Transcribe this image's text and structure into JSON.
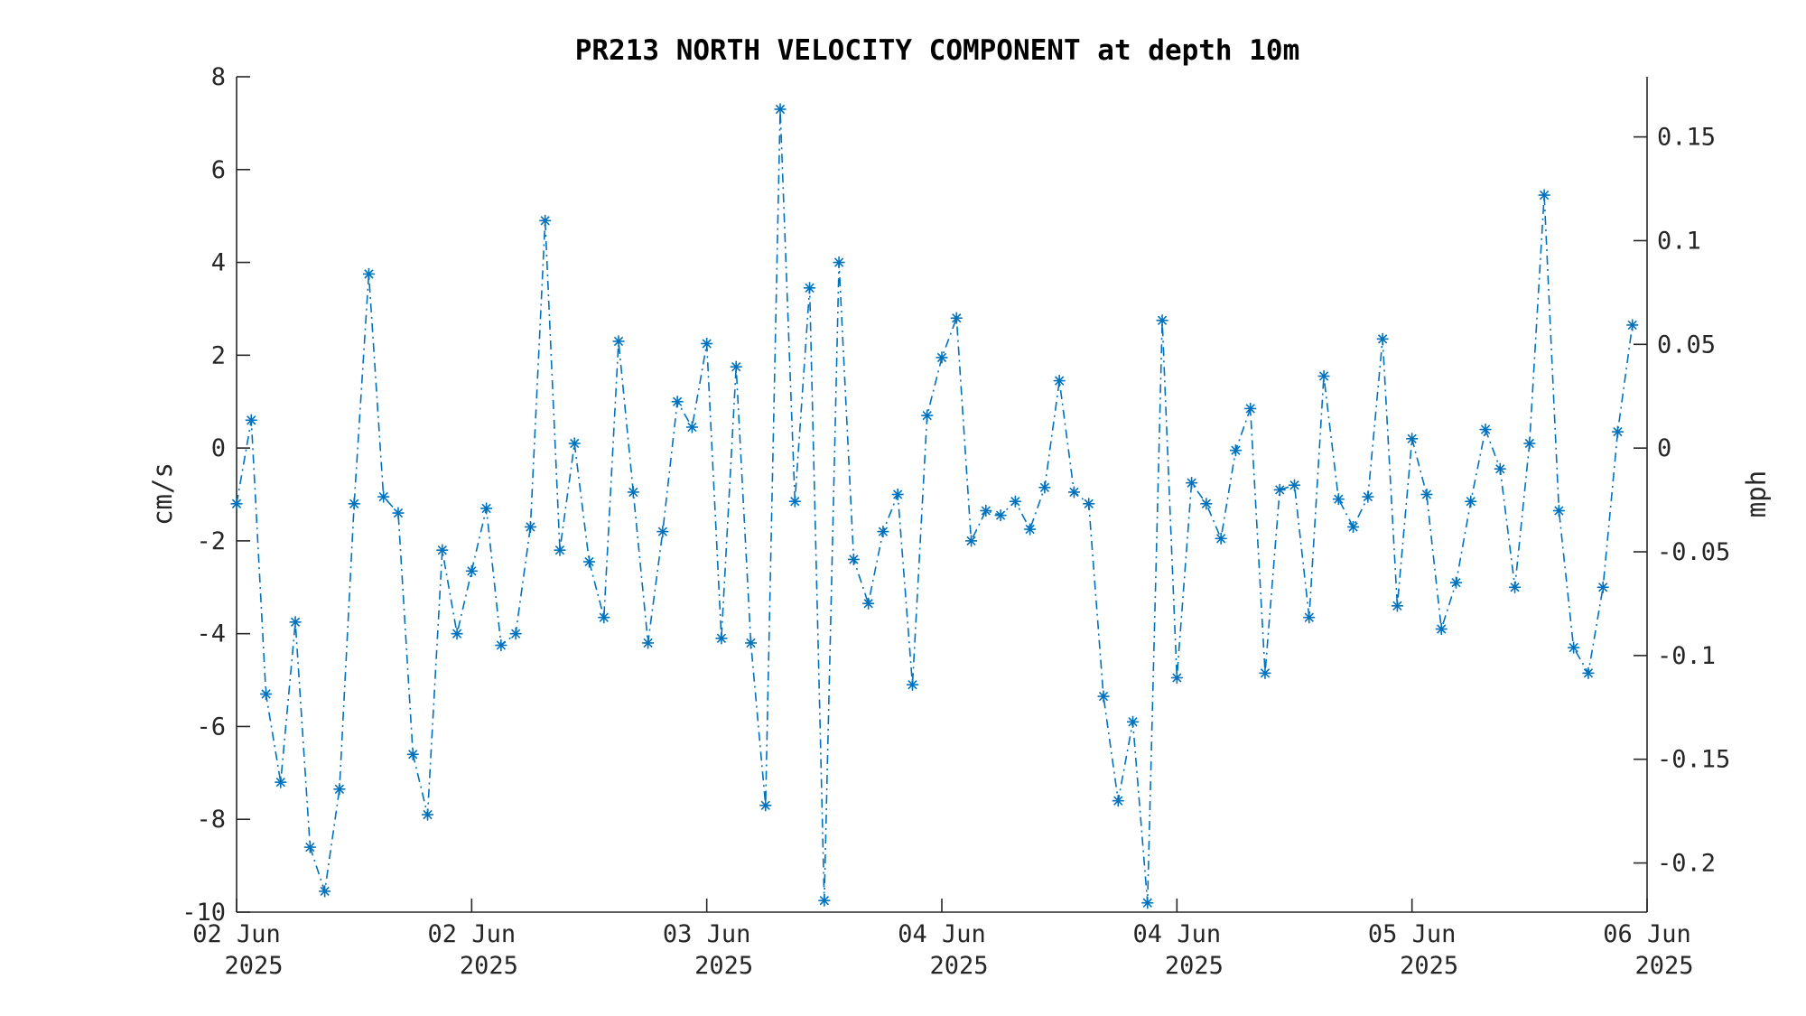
{
  "chart_data": {
    "type": "line",
    "title": "PR213 NORTH VELOCITY COMPONENT at depth 10m",
    "ylabel_left": "cm/s",
    "ylabel_right": "mph",
    "ylim_left": [
      -10,
      8
    ],
    "ylim_right": [
      -0.2237,
      0.179
    ],
    "yticks_left": [
      "8",
      "6",
      "4",
      "2",
      "0",
      "-2",
      "-4",
      "-6",
      "-8",
      "-10"
    ],
    "yticks_left_values": [
      8,
      6,
      4,
      2,
      0,
      -2,
      -4,
      -6,
      -8,
      -10
    ],
    "yticks_right": [
      "0.15",
      "0.1",
      "0.05",
      "0",
      "-0.05",
      "-0.1",
      "-0.15",
      "-0.2"
    ],
    "yticks_right_values": [
      0.15,
      0.1,
      0.05,
      0,
      -0.05,
      -0.1,
      -0.15,
      -0.2
    ],
    "xlim": [
      "2025-06-02 00:00",
      "2025-06-06 00:00"
    ],
    "xticks": [
      {
        "line1": "02 Jun",
        "line2": "2025",
        "value": "2025-06-02 00:00"
      },
      {
        "line1": "02 Jun",
        "line2": "2025",
        "value": "2025-06-02 16:00"
      },
      {
        "line1": "03 Jun",
        "line2": "2025",
        "value": "2025-06-03 08:00"
      },
      {
        "line1": "04 Jun",
        "line2": "2025",
        "value": "2025-06-04 00:00"
      },
      {
        "line1": "04 Jun",
        "line2": "2025",
        "value": "2025-06-04 16:00"
      },
      {
        "line1": "05 Jun",
        "line2": "2025",
        "value": "2025-06-05 08:00"
      },
      {
        "line1": "06 Jun",
        "line2": "2025",
        "value": "2025-06-06 00:00"
      }
    ],
    "grid": false,
    "series": [
      {
        "color": "#0072BD",
        "marker": "asterisk",
        "line_style": "dash-dot",
        "x_start": "2025-06-02 00:00",
        "x_step_minutes": 60,
        "values": [
          -1.2,
          0.6,
          -5.3,
          -7.2,
          -3.75,
          -8.6,
          -9.55,
          -7.35,
          -1.2,
          3.75,
          -1.05,
          -1.4,
          -6.6,
          -7.9,
          -2.2,
          -4.0,
          -2.65,
          -1.3,
          -4.25,
          -4.0,
          -1.7,
          4.9,
          -2.2,
          0.1,
          -2.45,
          -3.65,
          2.3,
          -0.95,
          -4.2,
          -1.8,
          1.0,
          0.45,
          2.25,
          -4.1,
          1.75,
          -4.2,
          -7.7,
          7.3,
          -1.15,
          3.45,
          -9.75,
          4.0,
          -2.4,
          -3.35,
          -1.8,
          -1.0,
          -5.1,
          0.7,
          1.95,
          2.8,
          -2.0,
          -1.35,
          -1.45,
          -1.15,
          -1.75,
          -0.85,
          1.45,
          -0.95,
          -1.2,
          -5.35,
          -7.6,
          -5.9,
          -9.8,
          2.75,
          -4.95,
          -0.75,
          -1.2,
          -1.95,
          -0.05,
          0.85,
          -4.85,
          -0.9,
          -0.8,
          -3.65,
          1.55,
          -1.1,
          -1.7,
          -1.05,
          2.35,
          -3.4,
          0.2,
          -1.0,
          -3.9,
          -2.9,
          -1.15,
          0.4,
          -0.45,
          -3.0,
          0.1,
          5.45,
          -1.35,
          -4.3,
          -4.85,
          -3.0,
          0.35,
          2.65
        ]
      }
    ]
  }
}
